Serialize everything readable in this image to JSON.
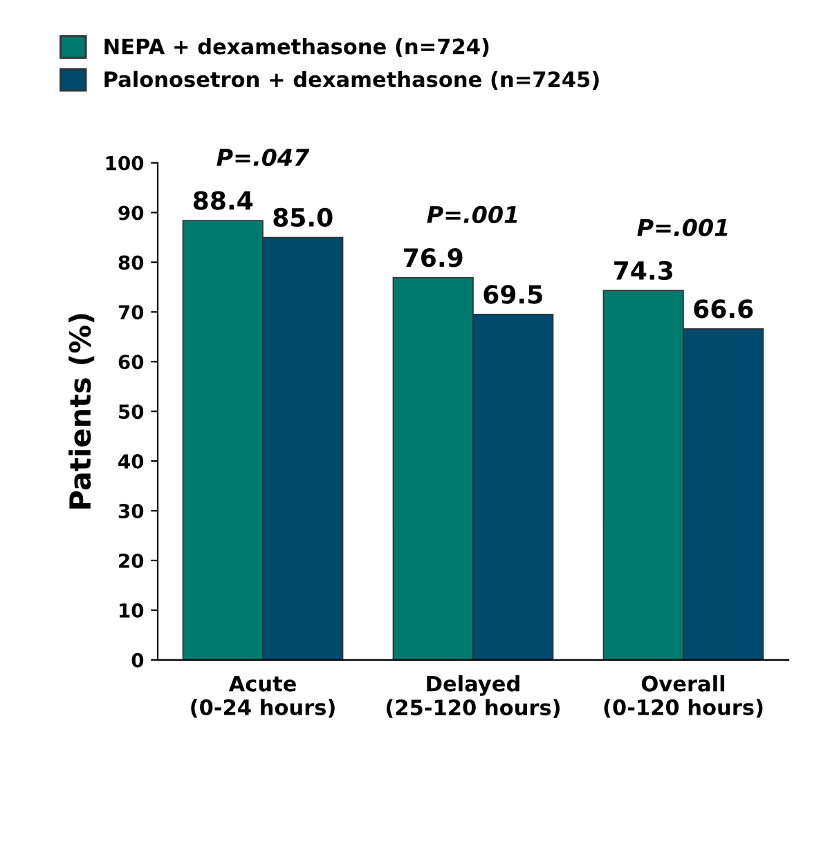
{
  "chart_data": {
    "type": "bar",
    "ylabel": "Patients (%)",
    "categories": [
      "Acute\n(0-24 hours)",
      "Delayed\n(25-120 hours)",
      "Overall\n(0-120 hours)"
    ],
    "series": [
      {
        "name": "NEPA + dexamethasone (n=724)",
        "color": "#007a6e",
        "values": [
          88.4,
          76.9,
          74.3
        ],
        "value_labels": [
          "88.4",
          "76.9",
          "74.3"
        ]
      },
      {
        "name": "Palonosetron + dexamethasone (n=7245)",
        "color": "#004a6e",
        "values": [
          85.0,
          69.5,
          66.6
        ],
        "value_labels": [
          "85.0",
          "69.5",
          "66.6"
        ]
      }
    ],
    "ylim": [
      0,
      100
    ],
    "yticks": [
      0,
      10,
      20,
      30,
      40,
      50,
      60,
      70,
      80,
      90,
      100
    ],
    "legend": "top left",
    "grid": false,
    "annotations": [
      "P=.047",
      "P=.001",
      "P=.001"
    ]
  }
}
